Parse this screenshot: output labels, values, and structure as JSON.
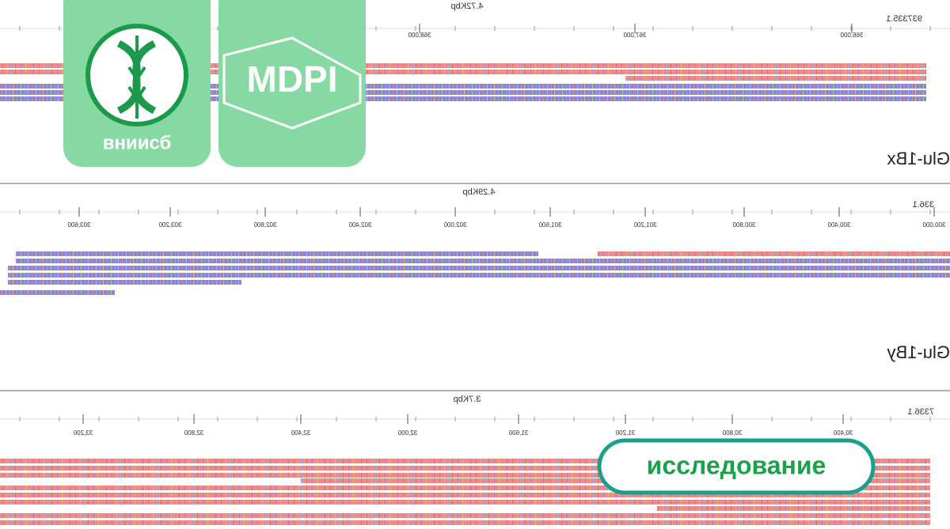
{
  "panels": [
    {
      "size": "4.72Kbp",
      "accession": "937335.1",
      "ticks": [
        "368,000",
        "367,000",
        "366,000"
      ],
      "gene": "Glu-1Bx"
    },
    {
      "size": "4.29Kbp",
      "accession": "336.1",
      "ticks": [
        "303,600",
        "303,200",
        "302,800",
        "302,400",
        "302,000",
        "301,600",
        "301,200",
        "300,800",
        "300,400",
        "300,000"
      ],
      "gene": "Glu-1By"
    },
    {
      "size": "3.7Kbp",
      "accession": "7336.1",
      "ticks": [
        "33,200",
        "32,800",
        "32,400",
        "32,000",
        "31,600",
        "31,200",
        "30,800",
        "30,400"
      ]
    }
  ],
  "logos": {
    "institute": "вниисб",
    "publisher": "MDPI",
    "badge": "исследование"
  }
}
